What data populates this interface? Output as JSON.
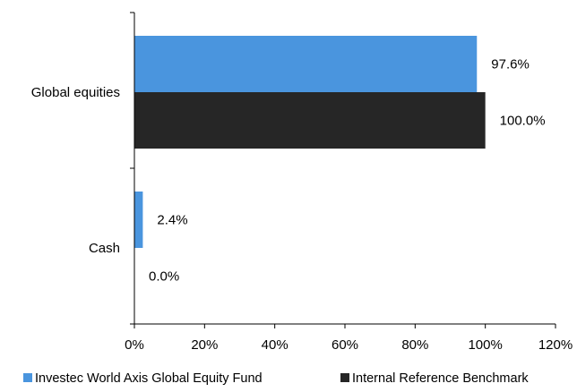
{
  "chart_data": {
    "type": "bar",
    "orientation": "horizontal",
    "categories": [
      "Global equities",
      "Cash"
    ],
    "series": [
      {
        "name": "Investec World Axis Global Equity Fund",
        "values": [
          97.6,
          2.4
        ],
        "labels": [
          "97.6%",
          "2.4%"
        ],
        "color": "#4a95de"
      },
      {
        "name": "Internal Reference Benchmark",
        "values": [
          100.0,
          0.0
        ],
        "labels": [
          "100.0%",
          "0.0%"
        ],
        "color": "#262626"
      }
    ],
    "xlim": [
      0,
      120
    ],
    "xticks": [
      0,
      20,
      40,
      60,
      80,
      100,
      120
    ],
    "xtick_labels": [
      "0%",
      "20%",
      "40%",
      "60%",
      "80%",
      "100%",
      "120%"
    ],
    "grid": false,
    "legend_position": "bottom"
  }
}
